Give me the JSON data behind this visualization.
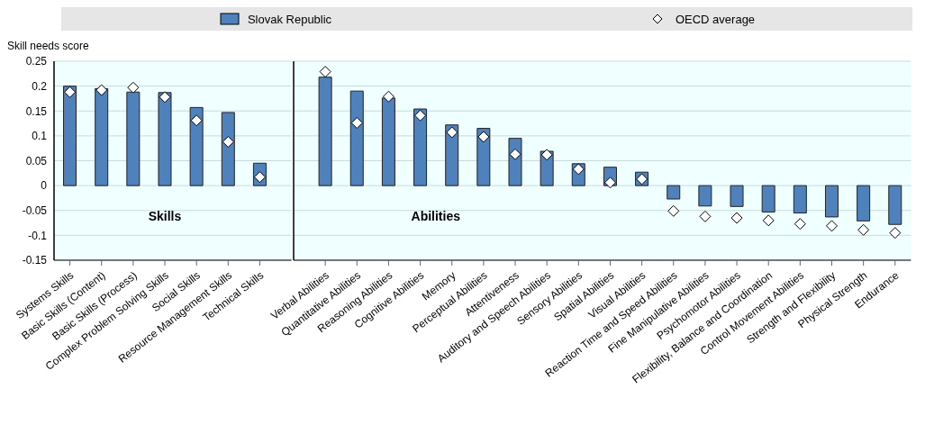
{
  "chart_data": [
    {
      "type": "bar",
      "ylabel": "Skill needs score",
      "categories": [
        "Systems Skills",
        "Basic Skills (Content)",
        "Basic Skills (Process)",
        "Complex Problem Solving Skills",
        "Social Skills",
        "Resource Management Skills",
        "Technical Skills"
      ],
      "series": [
        {
          "name": "Slovak Republic",
          "color": "#4f81bd",
          "values": [
            0.2,
            0.195,
            0.188,
            0.187,
            0.157,
            0.147,
            0.045
          ]
        },
        {
          "name": "OECD average",
          "type": "scatter",
          "color": "#ffffff",
          "marker": "diamond",
          "values": [
            0.188,
            0.192,
            0.197,
            0.178,
            0.131,
            0.088,
            0.017
          ]
        }
      ],
      "annotations": [
        "Skills"
      ],
      "ylim": [
        -0.15,
        0.25
      ],
      "yticks": [
        -0.15,
        -0.1,
        -0.05,
        0,
        0.05,
        0.1,
        0.15,
        0.2,
        0.25
      ],
      "grid": "y",
      "legend": "top"
    },
    {
      "type": "bar",
      "categories": [
        "Verbal Abilities",
        "Quantitative Abilities",
        "Reasoning Abilities",
        "Cognitive Abilities",
        "Memory",
        "Perceptual Abilities",
        "Attentiveness",
        "Auditory and Speech Abilities",
        "Sensory Abilities",
        "Spatial Abilities",
        "Visual Abilities",
        "Reaction Time and Speed Abilities",
        "Fine Manipulative Abilities",
        "Psychomotor Abilities",
        "Flexibility, Balance and Coordination",
        "Control Movement Abilities",
        "Strength and Flexibility",
        "Physical Strength",
        "Endurance"
      ],
      "series": [
        {
          "name": "Slovak Republic",
          "color": "#4f81bd",
          "values": [
            0.218,
            0.19,
            0.176,
            0.154,
            0.122,
            0.115,
            0.095,
            0.069,
            0.044,
            0.037,
            0.027,
            -0.027,
            -0.041,
            -0.042,
            -0.053,
            -0.055,
            -0.063,
            -0.071,
            -0.078
          ]
        },
        {
          "name": "OECD average",
          "type": "scatter",
          "color": "#ffffff",
          "marker": "diamond",
          "values": [
            0.229,
            0.126,
            0.179,
            0.141,
            0.107,
            0.098,
            0.063,
            0.062,
            0.033,
            0.006,
            0.013,
            -0.051,
            -0.062,
            -0.065,
            -0.07,
            -0.077,
            -0.081,
            -0.089,
            -0.095
          ]
        }
      ],
      "annotations": [
        "Abilities"
      ],
      "ylim": [
        -0.15,
        0.25
      ],
      "yticks": [
        -0.15,
        -0.1,
        -0.05,
        0,
        0.05,
        0.1,
        0.15,
        0.2,
        0.25
      ],
      "grid": "y",
      "tick_labels": "x"
    }
  ]
}
